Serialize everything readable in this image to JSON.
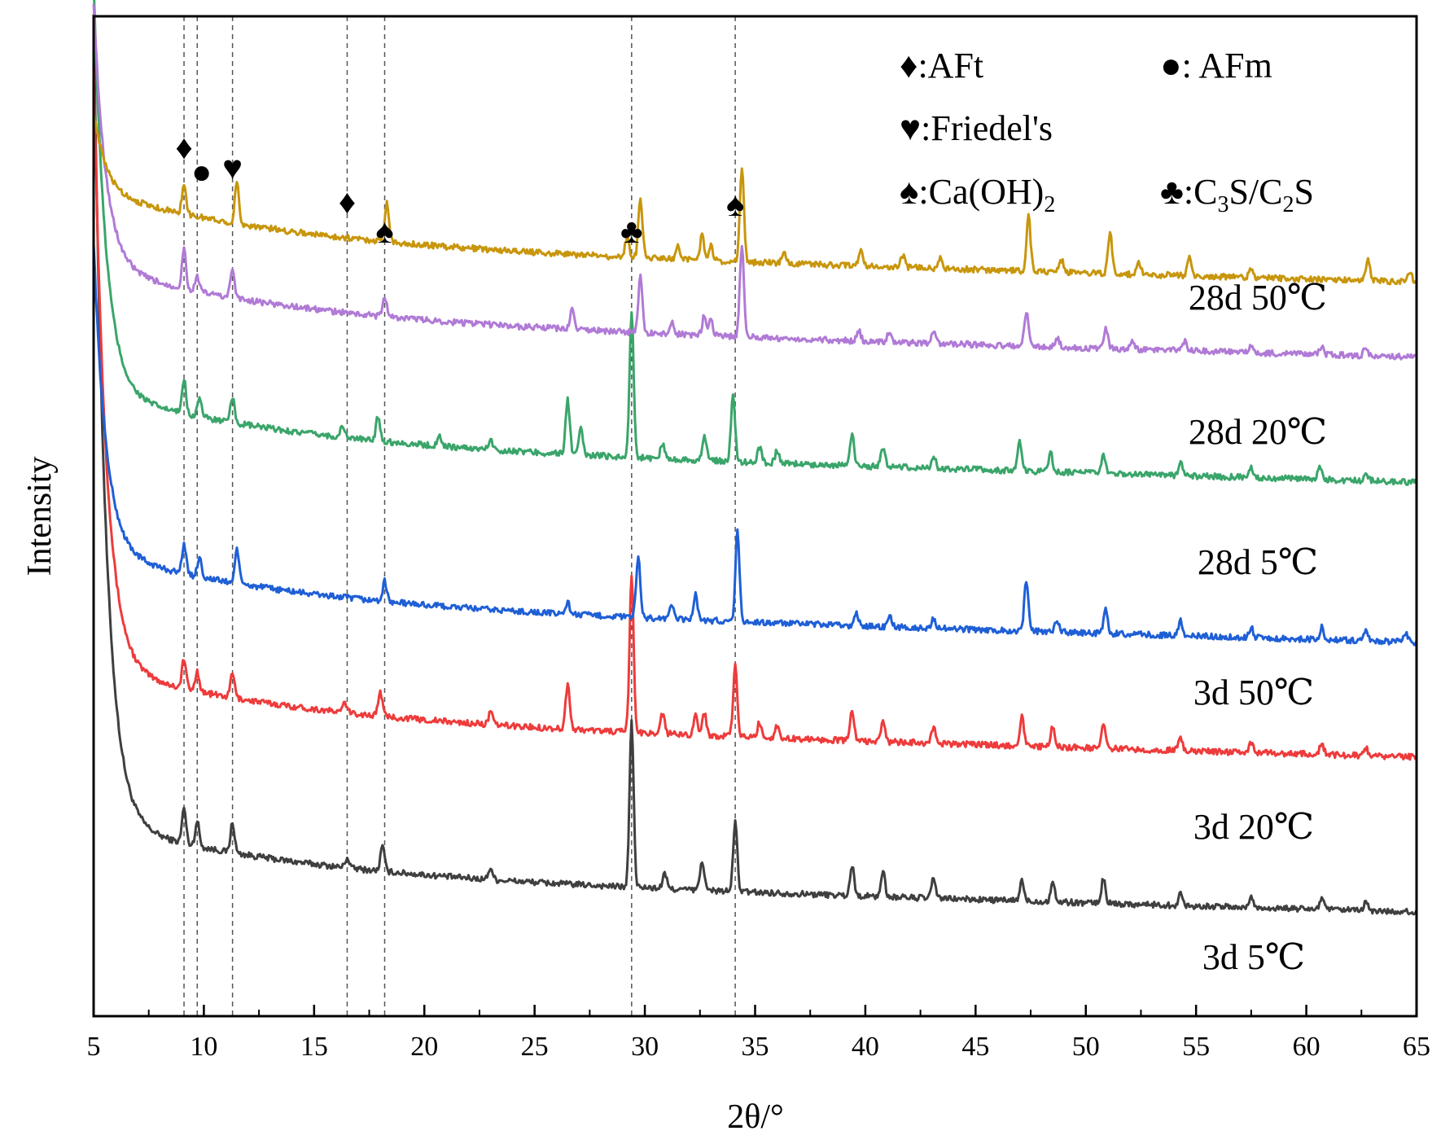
{
  "chart_data": {
    "type": "line",
    "title": "",
    "xlabel": "2θ/°",
    "ylabel": "Intensity",
    "xlim": [
      5,
      65
    ],
    "xticks": [
      5,
      10,
      15,
      20,
      25,
      30,
      35,
      40,
      45,
      50,
      55,
      60,
      65
    ],
    "yticks_shown": false,
    "reference_lines_2theta": [
      9.1,
      9.7,
      11.3,
      16.5,
      18.2,
      29.4,
      34.1
    ],
    "phase_markers": [
      {
        "symbol": "♦",
        "phase": "AFt",
        "positions": [
          9.1,
          16.5
        ]
      },
      {
        "symbol": "●",
        "phase": "AFm",
        "positions": [
          9.9
        ]
      },
      {
        "symbol": "♥",
        "phase": "Friedel's",
        "positions": [
          11.3
        ]
      },
      {
        "symbol": "♠",
        "phase": "Ca(OH)2",
        "positions": [
          18.2,
          34.1
        ]
      },
      {
        "symbol": "♣",
        "phase": "C3S/C2S",
        "positions": [
          29.4
        ]
      }
    ],
    "legend": [
      {
        "symbol": "♦",
        "text": ":AFt"
      },
      {
        "symbol": "●",
        "text": ": AFm"
      },
      {
        "symbol": "♥",
        "text": ":Friedel's"
      },
      {
        "symbol": "♠",
        "text": ":Ca(OH)",
        "sub": "2"
      },
      {
        "symbol": "♣",
        "text": ":C",
        "sub": "3",
        "text2": "S/C",
        "sub2": "2",
        "text3": "S"
      }
    ],
    "series": [
      {
        "name": "3d 5℃",
        "color": "#3f3f3f",
        "offset": 0.14,
        "start": 0.95,
        "peaks": [
          [
            9.1,
            0.035
          ],
          [
            9.7,
            0.025
          ],
          [
            11.3,
            0.03
          ],
          [
            16.5,
            0.01
          ],
          [
            18.1,
            0.025
          ],
          [
            23.0,
            0.012
          ],
          [
            29.4,
            0.165
          ],
          [
            30.9,
            0.015
          ],
          [
            32.6,
            0.03
          ],
          [
            34.1,
            0.07
          ],
          [
            39.4,
            0.03
          ],
          [
            40.8,
            0.025
          ],
          [
            43.1,
            0.02
          ],
          [
            47.1,
            0.02
          ],
          [
            48.5,
            0.02
          ],
          [
            50.8,
            0.025
          ],
          [
            54.3,
            0.012
          ],
          [
            57.5,
            0.01
          ],
          [
            60.7,
            0.012
          ],
          [
            62.7,
            0.008
          ]
        ]
      },
      {
        "name": "3d 20℃",
        "color": "#ee3b3b",
        "offset": 0.295,
        "start": 0.9,
        "peaks": [
          [
            9.1,
            0.03
          ],
          [
            9.7,
            0.02
          ],
          [
            11.3,
            0.025
          ],
          [
            16.4,
            0.01
          ],
          [
            18.0,
            0.025
          ],
          [
            23.0,
            0.012
          ],
          [
            26.5,
            0.045
          ],
          [
            29.4,
            0.155
          ],
          [
            30.8,
            0.02
          ],
          [
            32.3,
            0.02
          ],
          [
            32.7,
            0.022
          ],
          [
            34.1,
            0.07
          ],
          [
            35.2,
            0.015
          ],
          [
            36.0,
            0.012
          ],
          [
            39.4,
            0.03
          ],
          [
            40.8,
            0.02
          ],
          [
            43.1,
            0.015
          ],
          [
            47.1,
            0.03
          ],
          [
            48.5,
            0.02
          ],
          [
            50.8,
            0.025
          ],
          [
            54.3,
            0.012
          ],
          [
            57.5,
            0.01
          ],
          [
            60.7,
            0.012
          ],
          [
            62.7,
            0.008
          ]
        ]
      },
      {
        "name": "3d 50℃",
        "color": "#1f5fd6",
        "offset": 0.41,
        "start": 0.72,
        "peaks": [
          [
            9.1,
            0.03
          ],
          [
            9.8,
            0.02
          ],
          [
            11.5,
            0.035
          ],
          [
            18.2,
            0.02
          ],
          [
            26.5,
            0.012
          ],
          [
            29.7,
            0.06
          ],
          [
            31.2,
            0.015
          ],
          [
            32.3,
            0.025
          ],
          [
            34.2,
            0.09
          ],
          [
            39.6,
            0.012
          ],
          [
            41.1,
            0.01
          ],
          [
            43.1,
            0.01
          ],
          [
            47.3,
            0.05
          ],
          [
            48.7,
            0.012
          ],
          [
            50.9,
            0.025
          ],
          [
            54.3,
            0.015
          ],
          [
            57.5,
            0.01
          ],
          [
            60.7,
            0.012
          ],
          [
            62.7,
            0.012
          ],
          [
            64.5,
            0.01
          ]
        ]
      },
      {
        "name": "28d 5℃",
        "color": "#3aa56a",
        "offset": 0.57,
        "start": 0.98,
        "peaks": [
          [
            9.1,
            0.035
          ],
          [
            9.8,
            0.02
          ],
          [
            11.3,
            0.025
          ],
          [
            16.3,
            0.012
          ],
          [
            17.9,
            0.025
          ],
          [
            20.7,
            0.01
          ],
          [
            23.0,
            0.01
          ],
          [
            26.5,
            0.055
          ],
          [
            27.1,
            0.025
          ],
          [
            29.4,
            0.145
          ],
          [
            30.8,
            0.015
          ],
          [
            32.7,
            0.025
          ],
          [
            34.0,
            0.065
          ],
          [
            35.2,
            0.015
          ],
          [
            36.0,
            0.012
          ],
          [
            39.4,
            0.03
          ],
          [
            40.8,
            0.02
          ],
          [
            43.1,
            0.012
          ],
          [
            47.0,
            0.03
          ],
          [
            48.4,
            0.02
          ],
          [
            50.8,
            0.018
          ],
          [
            54.3,
            0.012
          ],
          [
            57.5,
            0.01
          ],
          [
            60.6,
            0.015
          ],
          [
            62.7,
            0.006
          ]
        ]
      },
      {
        "name": "28d 20℃",
        "color": "#b07ad6",
        "offset": 0.695,
        "start": 0.96,
        "peaks": [
          [
            9.1,
            0.04
          ],
          [
            9.7,
            0.015
          ],
          [
            11.3,
            0.03
          ],
          [
            18.2,
            0.02
          ],
          [
            26.7,
            0.02
          ],
          [
            29.8,
            0.055
          ],
          [
            31.2,
            0.012
          ],
          [
            32.7,
            0.02
          ],
          [
            33.0,
            0.015
          ],
          [
            34.4,
            0.09
          ],
          [
            39.7,
            0.01
          ],
          [
            41.1,
            0.01
          ],
          [
            43.1,
            0.01
          ],
          [
            47.3,
            0.035
          ],
          [
            48.7,
            0.01
          ],
          [
            50.9,
            0.02
          ],
          [
            52.1,
            0.008
          ],
          [
            54.5,
            0.01
          ],
          [
            57.5,
            0.008
          ],
          [
            60.7,
            0.008
          ],
          [
            62.7,
            0.01
          ]
        ]
      },
      {
        "name": "28d 50℃",
        "color": "#c8960c",
        "offset": 0.77,
        "start": 0.85,
        "peaks": [
          [
            9.1,
            0.03
          ],
          [
            11.5,
            0.04
          ],
          [
            18.3,
            0.04
          ],
          [
            29.2,
            0.02
          ],
          [
            29.8,
            0.06
          ],
          [
            31.5,
            0.012
          ],
          [
            32.6,
            0.025
          ],
          [
            33.0,
            0.015
          ],
          [
            34.4,
            0.095
          ],
          [
            36.3,
            0.01
          ],
          [
            39.8,
            0.015
          ],
          [
            41.7,
            0.012
          ],
          [
            43.4,
            0.01
          ],
          [
            47.4,
            0.055
          ],
          [
            48.9,
            0.012
          ],
          [
            51.1,
            0.04
          ],
          [
            52.4,
            0.012
          ],
          [
            54.7,
            0.02
          ],
          [
            57.5,
            0.008
          ],
          [
            62.8,
            0.022
          ],
          [
            64.7,
            0.01
          ]
        ]
      }
    ]
  }
}
